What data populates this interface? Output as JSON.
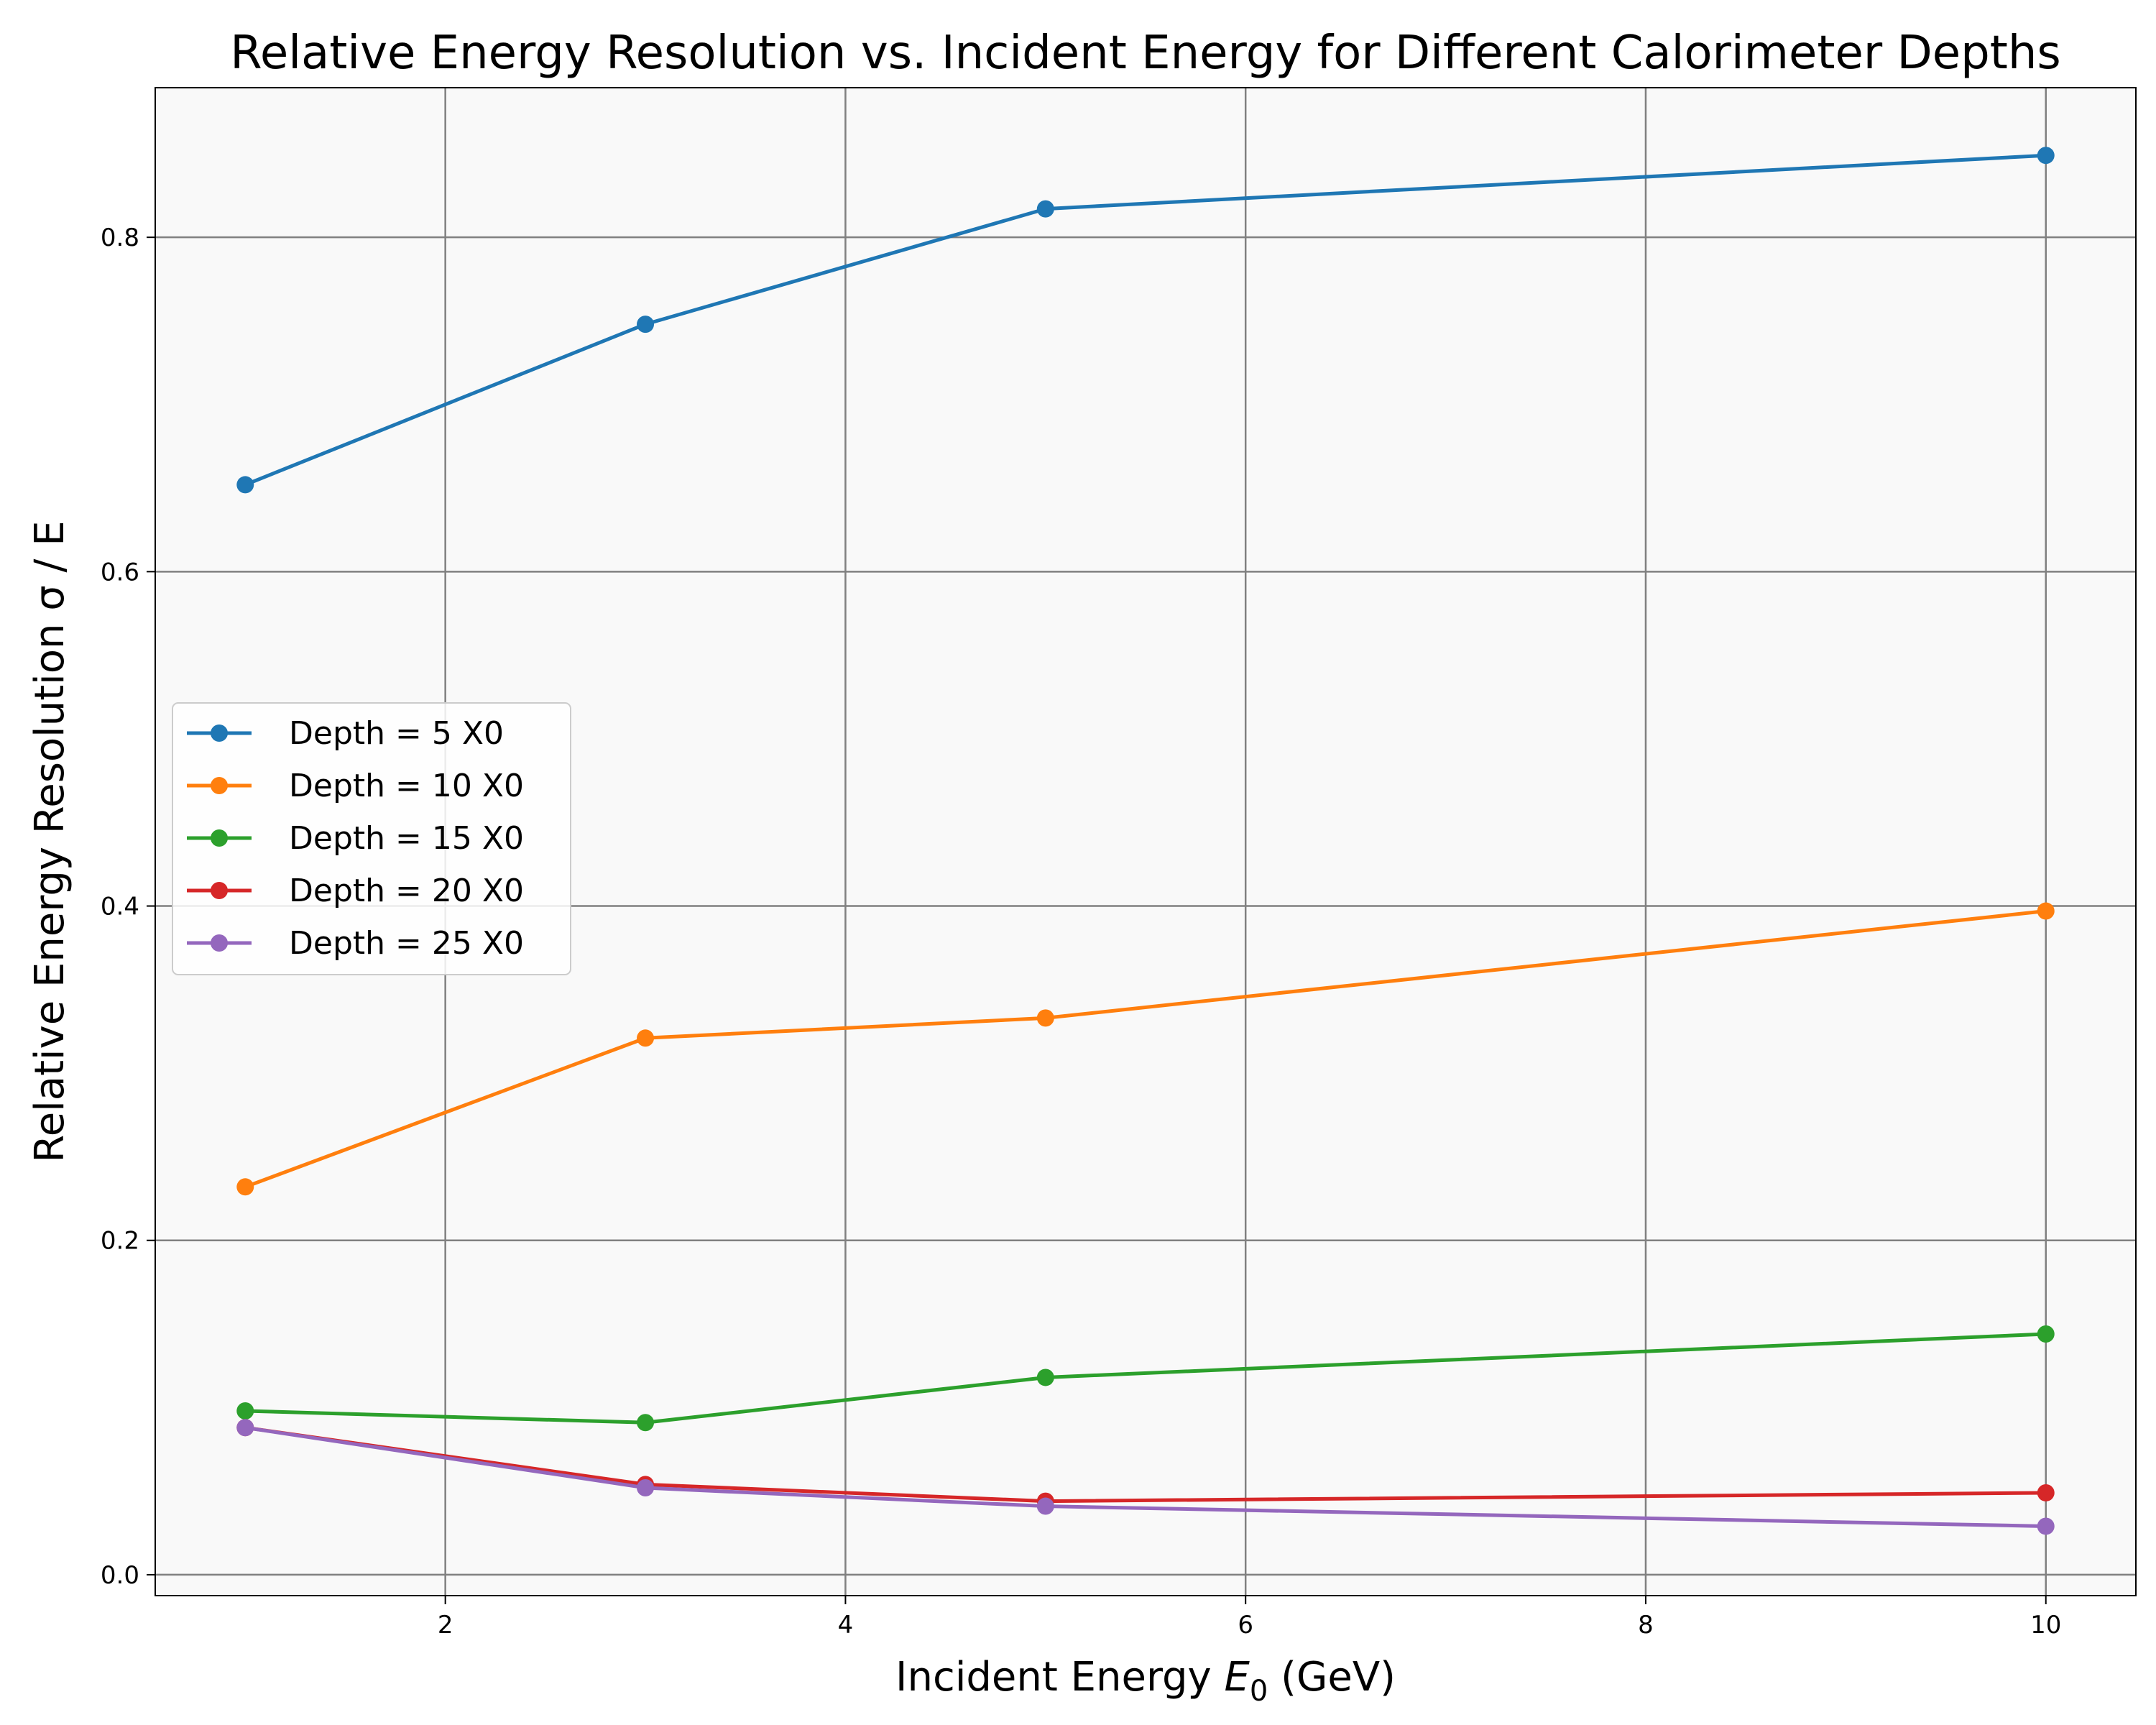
{
  "chart_data": {
    "type": "line",
    "title": "Relative Energy Resolution vs. Incident Energy for Different Calorimeter Depths",
    "xlabel_prefix": "Incident Energy ",
    "xlabel_symbol": "E",
    "xlabel_subscript": "0",
    "xlabel_suffix": " (GeV)",
    "ylabel": "Relative Energy Resolution σ / E",
    "x": [
      1,
      3,
      5,
      10
    ],
    "xlim": [
      0.55,
      10.45
    ],
    "ylim": [
      -0.0125,
      0.8895
    ],
    "xticks": [
      2,
      4,
      6,
      8,
      10
    ],
    "yticks": [
      0.0,
      0.2,
      0.4,
      0.6,
      0.8
    ],
    "xtick_labels": [
      "2",
      "4",
      "6",
      "8",
      "10"
    ],
    "ytick_labels": [
      "0.0",
      "0.2",
      "0.4",
      "0.6",
      "0.8"
    ],
    "grid": true,
    "plot_background": "#f9f9f9",
    "legend_position": "center-left",
    "series": [
      {
        "name": "Depth = 5 X0",
        "color": "#1f77b4",
        "values": [
          0.652,
          0.748,
          0.817,
          0.849
        ]
      },
      {
        "name": "Depth = 10 X0",
        "color": "#ff7f0e",
        "values": [
          0.232,
          0.321,
          0.333,
          0.397
        ]
      },
      {
        "name": "Depth = 15 X0",
        "color": "#2ca02c",
        "values": [
          0.098,
          0.091,
          0.118,
          0.144
        ]
      },
      {
        "name": "Depth = 20 X0",
        "color": "#d62728",
        "values": [
          0.088,
          0.054,
          0.044,
          0.049
        ]
      },
      {
        "name": "Depth = 25 X0",
        "color": "#9467bd",
        "values": [
          0.088,
          0.052,
          0.041,
          0.029
        ]
      }
    ]
  }
}
